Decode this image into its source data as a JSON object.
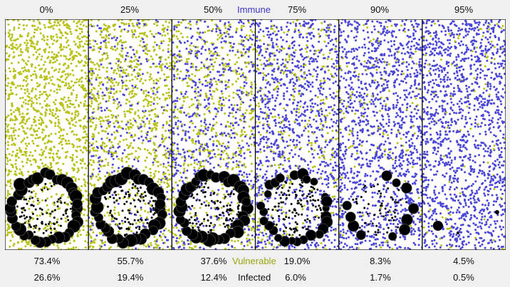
{
  "legend": {
    "immune": "Immune",
    "vulnerable": "Vulnerable",
    "infected": "Infected"
  },
  "colors": {
    "immune": "#4a46d8",
    "vulnerable": "#b8c21a",
    "infected": "#000000",
    "background": "#ffffff",
    "page": "#f0f0f0"
  },
  "panels": [
    {
      "immune_label": "0%",
      "vulnerable_pct": "73.4%",
      "infected_pct": "26.6%",
      "immune_frac": 0.0,
      "infected_ring": "full"
    },
    {
      "immune_label": "25%",
      "vulnerable_pct": "55.7%",
      "infected_pct": "19.4%",
      "immune_frac": 0.25,
      "infected_ring": "full"
    },
    {
      "immune_label": "50%",
      "vulnerable_pct": "37.6%",
      "infected_pct": "12.4%",
      "immune_frac": 0.5,
      "infected_ring": "full"
    },
    {
      "immune_label": "75%",
      "vulnerable_pct": "19.0%",
      "infected_pct": "6.0%",
      "immune_frac": 0.75,
      "infected_ring": "partial"
    },
    {
      "immune_label": "90%",
      "vulnerable_pct": "8.3%",
      "infected_pct": "1.7%",
      "immune_frac": 0.9,
      "infected_ring": "sparse"
    },
    {
      "immune_label": "95%",
      "vulnerable_pct": "4.5%",
      "infected_pct": "0.5%",
      "immune_frac": 0.95,
      "infected_ring": "few"
    }
  ]
}
